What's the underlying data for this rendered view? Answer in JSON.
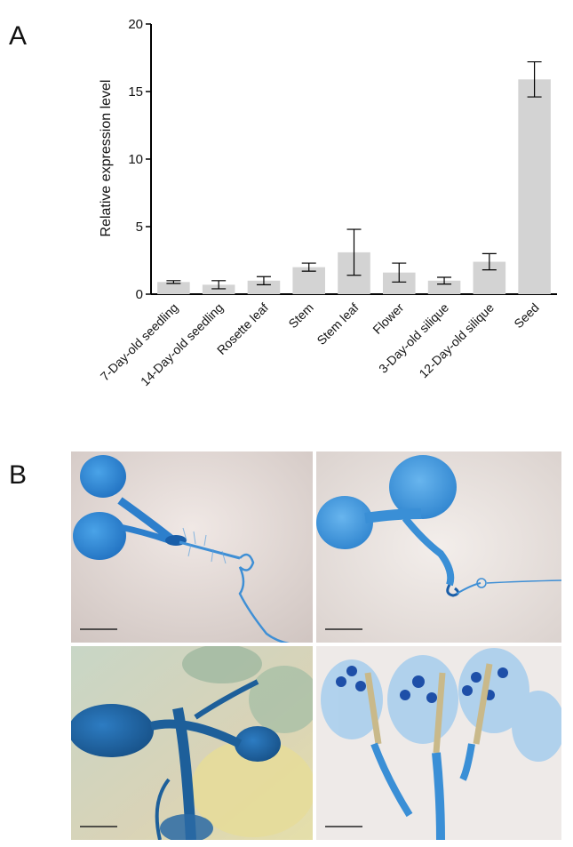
{
  "panel_labels": {
    "a": "A",
    "b": "B"
  },
  "chart_data": {
    "type": "bar",
    "title": "",
    "xlabel": "",
    "ylabel": "Relative expression level",
    "ylim": [
      0,
      20
    ],
    "yticks": [
      0,
      5,
      10,
      15,
      20
    ],
    "grid": false,
    "categories": [
      "7-Day-old seedling",
      "14-Day-old seedling",
      "Rosette leaf",
      "Stem",
      "Stem leaf",
      "Flower",
      "3-Day-old silique",
      "12-Day-old silique",
      "Seed"
    ],
    "values": [
      0.9,
      0.7,
      1.0,
      2.0,
      3.1,
      1.6,
      1.0,
      2.4,
      15.9
    ],
    "errors": [
      0.1,
      0.3,
      0.3,
      0.3,
      1.7,
      0.7,
      0.25,
      0.6,
      1.3
    ],
    "bar_color": "#d3d3d3"
  },
  "photos": [
    {
      "name": "seedling-photo-1",
      "bg": "#ddd3cf",
      "tissue": "#2f7fcc"
    },
    {
      "name": "seedling-photo-2",
      "bg": "#e2dbd7",
      "tissue": "#3a8fd6"
    },
    {
      "name": "rosette-photo",
      "bg": "#c9d3c4",
      "tissue": "#1d5f9a"
    },
    {
      "name": "flower-photo",
      "bg": "#ece8e6",
      "tissue": "#3f95de"
    }
  ]
}
